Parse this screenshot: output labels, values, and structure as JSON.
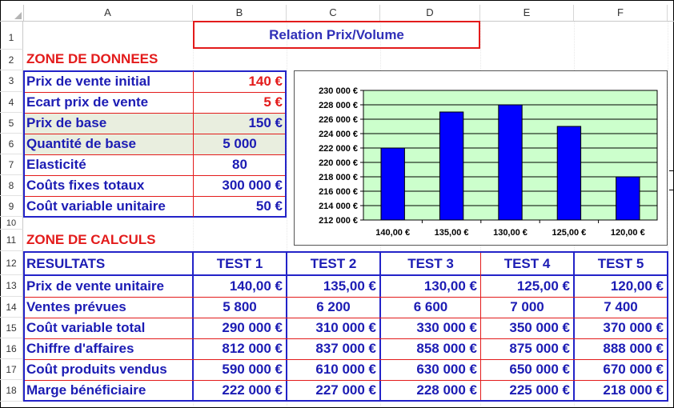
{
  "columns": [
    "A",
    "B",
    "C",
    "D",
    "E",
    "F"
  ],
  "rows": [
    "1",
    "2",
    "3",
    "4",
    "5",
    "6",
    "7",
    "8",
    "9",
    "10",
    "11",
    "12",
    "13",
    "14",
    "15",
    "16",
    "17",
    "18"
  ],
  "title": "Relation Prix/Volume",
  "zone_donnees": "ZONE DE DONNEES",
  "zone_calculs": "ZONE DE CALCULS",
  "inputs": [
    {
      "label": "Prix de vente initial",
      "value": "140 €"
    },
    {
      "label": "Ecart prix de vente",
      "value": "5 €"
    },
    {
      "label": "Prix de base",
      "value": "150 €"
    },
    {
      "label": "Quantité de base",
      "value": "5 000"
    },
    {
      "label": "Elasticité",
      "value": "80"
    },
    {
      "label": "Coûts fixes totaux",
      "value": "300 000 €"
    },
    {
      "label": "Coût variable unitaire",
      "value": "50 €"
    }
  ],
  "results": {
    "header": [
      "RESULTATS",
      "TEST 1",
      "TEST 2",
      "TEST 3",
      "TEST 4",
      "TEST 5"
    ],
    "rows": [
      {
        "label": "Prix de vente unitaire",
        "values": [
          "140,00 €",
          "135,00 €",
          "130,00 €",
          "125,00 €",
          "120,00 €"
        ]
      },
      {
        "label": "Ventes prévues",
        "values": [
          "5 800",
          "6 200",
          "6 600",
          "7 000",
          "7 400"
        ]
      },
      {
        "label": "Coût variable total",
        "values": [
          "290 000 €",
          "310 000 €",
          "330 000 €",
          "350 000 €",
          "370 000 €"
        ]
      },
      {
        "label": "Chiffre d'affaires",
        "values": [
          "812 000 €",
          "837 000 €",
          "858 000 €",
          "875 000 €",
          "888 000 €"
        ]
      },
      {
        "label": "Coût produits vendus",
        "values": [
          "590 000 €",
          "610 000 €",
          "630 000 €",
          "650 000 €",
          "670 000 €"
        ]
      },
      {
        "label": "Marge bénéficiaire",
        "values": [
          "222 000 €",
          "227 000 €",
          "228 000 €",
          "225 000 €",
          "218 000 €"
        ]
      }
    ]
  },
  "colors": {
    "accent_blue": "#1c1cb4",
    "accent_red": "#e31b1b",
    "plot_bg": "#ccffcc",
    "bar": "#0000ff"
  },
  "chart_data": {
    "type": "bar",
    "categories": [
      "140,00 €",
      "135,00 €",
      "130,00 €",
      "125,00 €",
      "120,00 €"
    ],
    "values": [
      222000,
      227000,
      228000,
      225000,
      218000
    ],
    "yticks": [
      "212 000 €",
      "214 000 €",
      "216 000 €",
      "218 000 €",
      "220 000 €",
      "222 000 €",
      "224 000 €",
      "226 000 €",
      "228 000 €",
      "230 000 €"
    ],
    "ylim": [
      212000,
      230000
    ],
    "grid": true,
    "title": "",
    "xlabel": "",
    "ylabel": ""
  }
}
